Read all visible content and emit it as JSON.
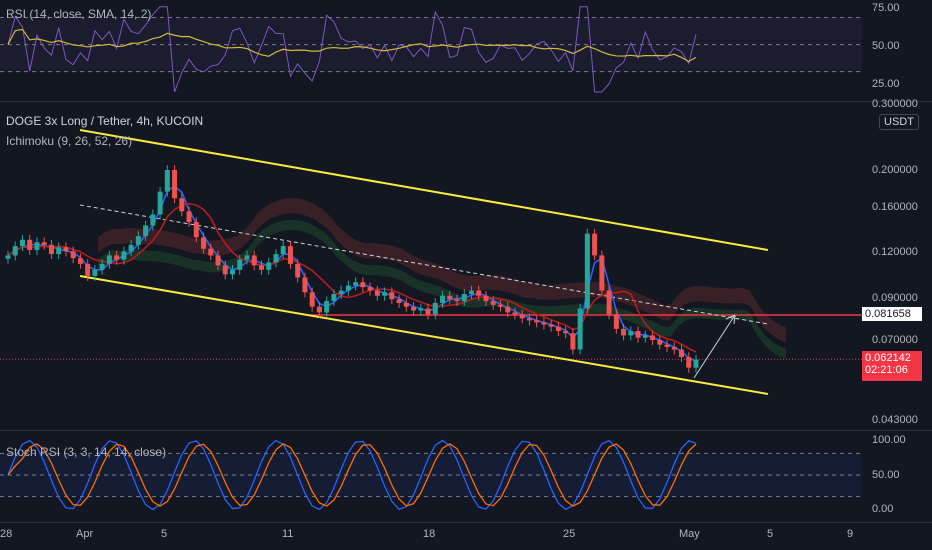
{
  "rsi_panel": {
    "legend": "RSI (14, close, SMA, 14, 2)",
    "ticks": [
      "75.00",
      "50.00",
      "25.00"
    ],
    "ylim": [
      12,
      80
    ]
  },
  "main_panel": {
    "title": "DOGE 3x Long / Tether, 4h, KUCOIN",
    "indicator": "Ichimoku (9, 26, 52, 26)",
    "currency": "USDT",
    "ticks": [
      "0.300000",
      "0.200000",
      "0.160000",
      "0.120000",
      "0.090000",
      "0.070000",
      "0.043000"
    ],
    "current_price": "0.062142",
    "countdown": "02:21:06",
    "level_price": "0.081658"
  },
  "stoch_panel": {
    "legend": "Stoch RSI (3, 3, 14, 14, close)",
    "ticks": [
      "100.00",
      "50.00",
      "0.00"
    ]
  },
  "x_axis": {
    "labels": [
      "28",
      "Apr",
      "5",
      "11",
      "18",
      "25",
      "May",
      "5",
      "9"
    ]
  },
  "colors": {
    "background": "#131722",
    "channel": "#ffeb3b",
    "level_line": "#f23645",
    "rsi_line": "#7e57c2",
    "rsi_sma": "#d4b93a",
    "stoch_k": "#2962ff",
    "stoch_d": "#ff6d00",
    "candle_up": "#26a69a",
    "candle_down": "#ef5350"
  },
  "chart_data": {
    "type": "candlestick",
    "symbol": "DOGE 3x Long / Tether",
    "interval": "4h",
    "close_series": [
      0.118,
      0.125,
      0.13,
      0.122,
      0.128,
      0.126,
      0.119,
      0.124,
      0.121,
      0.116,
      0.112,
      0.104,
      0.108,
      0.112,
      0.118,
      0.115,
      0.121,
      0.126,
      0.133,
      0.142,
      0.152,
      0.175,
      0.2,
      0.168,
      0.155,
      0.145,
      0.132,
      0.123,
      0.118,
      0.111,
      0.105,
      0.108,
      0.115,
      0.118,
      0.111,
      0.108,
      0.113,
      0.119,
      0.125,
      0.112,
      0.103,
      0.094,
      0.086,
      0.083,
      0.089,
      0.093,
      0.095,
      0.098,
      0.1,
      0.097,
      0.095,
      0.092,
      0.094,
      0.09,
      0.088,
      0.086,
      0.084,
      0.085,
      0.082,
      0.088,
      0.092,
      0.09,
      0.089,
      0.093,
      0.095,
      0.092,
      0.089,
      0.087,
      0.086,
      0.083,
      0.082,
      0.08,
      0.079,
      0.078,
      0.077,
      0.076,
      0.074,
      0.073,
      0.066,
      0.085,
      0.135,
      0.118,
      0.095,
      0.082,
      0.075,
      0.072,
      0.074,
      0.071,
      0.072,
      0.07,
      0.068,
      0.067,
      0.066,
      0.063,
      0.059,
      0.062
    ]
  }
}
